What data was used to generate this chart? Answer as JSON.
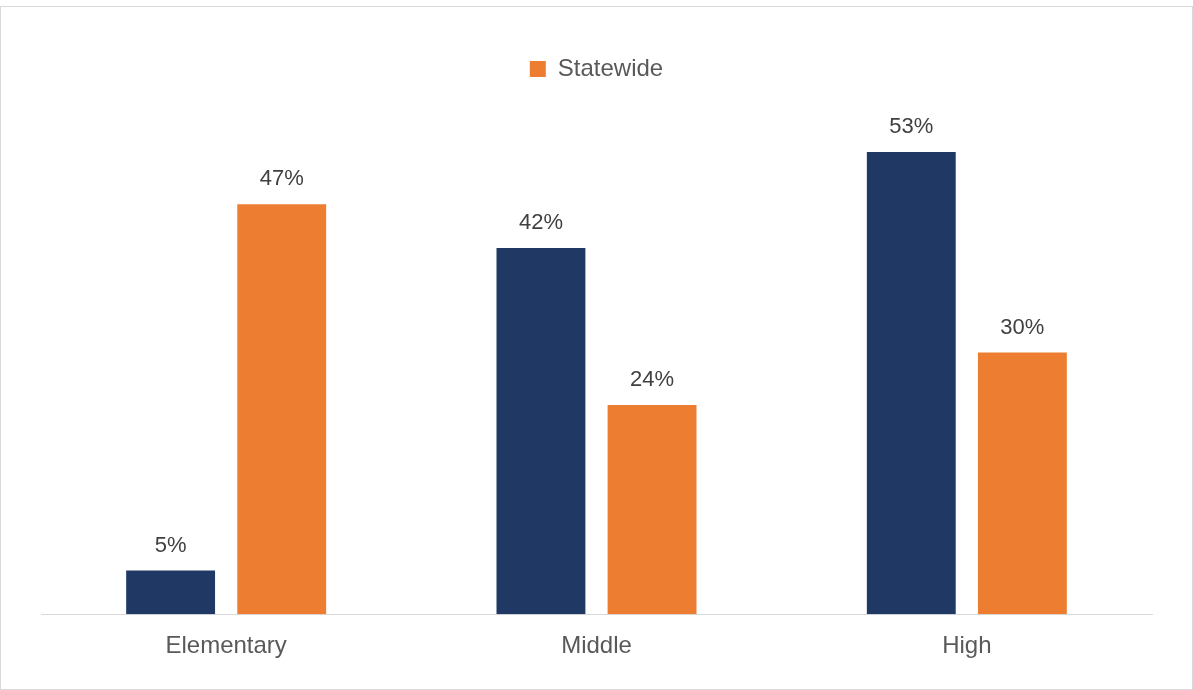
{
  "chart_data": {
    "type": "bar",
    "categories": [
      "Elementary",
      "Middle",
      "High"
    ],
    "series": [
      {
        "color": "#203864",
        "values": [
          5,
          42,
          53
        ],
        "value_labels": [
          "5%",
          "42%",
          "53%"
        ]
      },
      {
        "name": "Statewide",
        "color": "#ed7d31",
        "values": [
          47,
          24,
          30
        ],
        "value_labels": [
          "47%",
          "24%",
          "30%"
        ]
      }
    ],
    "legend": "top"
  }
}
